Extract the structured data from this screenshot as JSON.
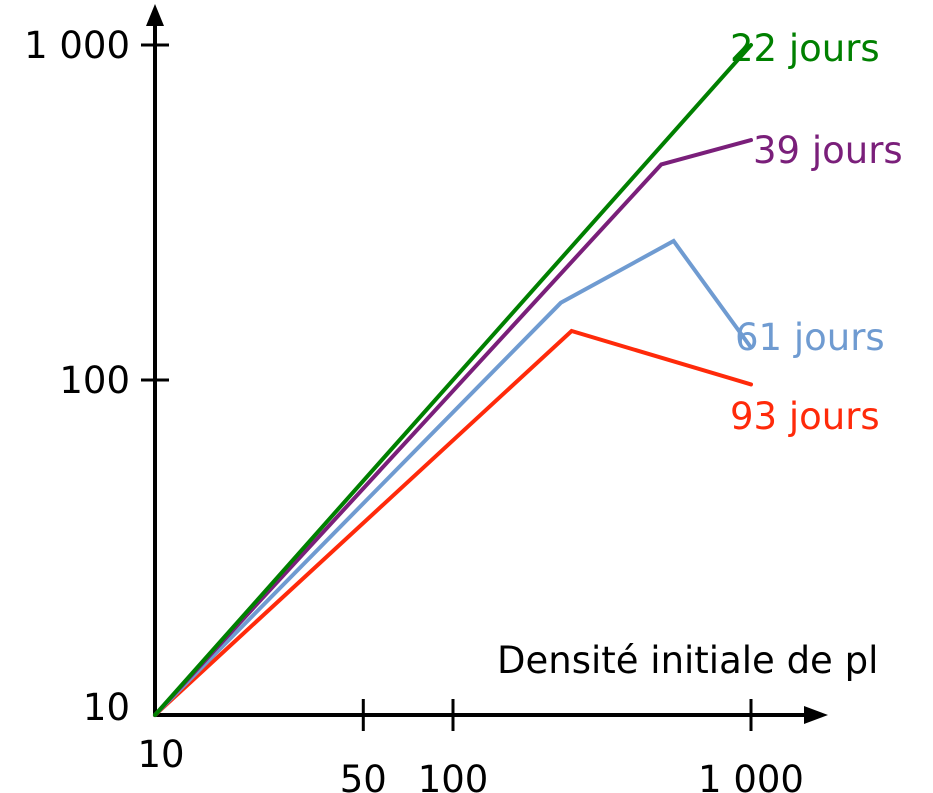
{
  "chart_data": {
    "type": "line",
    "title": "",
    "xlabel": "Densité initiale de pl",
    "ylabel": "",
    "x_scale": "log",
    "y_scale": "log",
    "xlim": [
      10,
      1500
    ],
    "ylim": [
      10,
      1000
    ],
    "x_ticks": [
      {
        "value": 10,
        "label": "10"
      },
      {
        "value": 50,
        "label": "50"
      },
      {
        "value": 100,
        "label": "100"
      },
      {
        "value": 1000,
        "label": "1 000"
      }
    ],
    "y_ticks": [
      {
        "value": 10,
        "label": "10"
      },
      {
        "value": 100,
        "label": "100"
      },
      {
        "value": 1000,
        "label": "1 000"
      }
    ],
    "grid": false,
    "legend": "none",
    "series": [
      {
        "label": "22 jours",
        "color": "#008000",
        "x": [
          10,
          1000
        ],
        "y": [
          10,
          1000
        ]
      },
      {
        "label": "39 jours",
        "color": "#7a1f7a",
        "x": [
          10,
          500,
          1000
        ],
        "y": [
          10,
          440,
          520
        ]
      },
      {
        "label": "61 jours",
        "color": "#6f9bd1",
        "x": [
          10,
          230,
          550,
          1000
        ],
        "y": [
          10,
          170,
          260,
          125
        ]
      },
      {
        "label": "93 jours",
        "color": "#ff2a0a",
        "x": [
          10,
          250,
          1000
        ],
        "y": [
          10,
          140,
          97
        ]
      }
    ]
  }
}
